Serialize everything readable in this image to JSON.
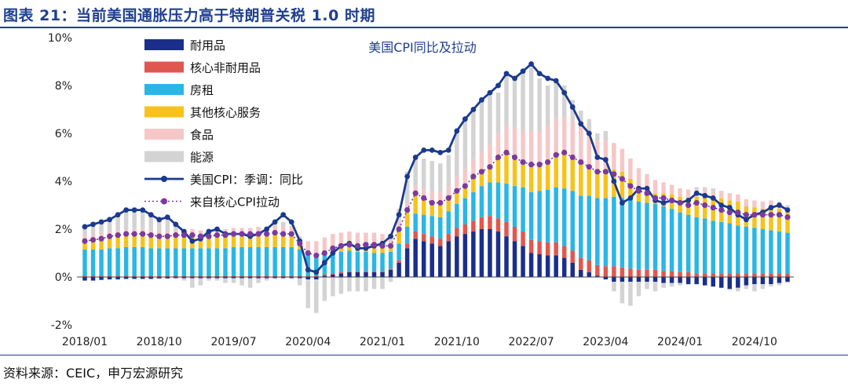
{
  "header": {
    "title": "图表 21：当前美国通胀压力高于特朗普关税 1.0 时期"
  },
  "footer": {
    "source": "资料来源：CEIC，申万宏源研究"
  },
  "colors": {
    "title": "#1f3f8f",
    "durables": "#1a2e8c",
    "core_nondurables": "#e0574f",
    "shelter": "#29b6e6",
    "other_services": "#f7c31a",
    "food": "#f6c7c7",
    "energy": "#d3d3d3",
    "cpi_line": "#1a3a8f",
    "core_contrib": "#7a3aa0"
  },
  "chart_data": {
    "type": "bar",
    "title": "美国CPI同比及拉动",
    "ylim": [
      -2,
      10
    ],
    "y_ticks": [
      "-2%",
      "0%",
      "2%",
      "4%",
      "6%",
      "8%",
      "10%"
    ],
    "x_tick_labels": [
      "2018/01",
      "2018/10",
      "2019/07",
      "2020/04",
      "2021/01",
      "2021/10",
      "2022/07",
      "2023/04",
      "2024/01",
      "2024/10"
    ],
    "x_tick_index": [
      0,
      9,
      18,
      27,
      36,
      45,
      54,
      63,
      72,
      81
    ],
    "legend": {
      "position": "top-left",
      "items": [
        {
          "label": "耐用品",
          "kind": "bar",
          "color_key": "durables"
        },
        {
          "label": "核心非耐用品",
          "kind": "bar",
          "color_key": "core_nondurables"
        },
        {
          "label": "房租",
          "kind": "bar",
          "color_key": "shelter"
        },
        {
          "label": "其他核心服务",
          "kind": "bar",
          "color_key": "other_services"
        },
        {
          "label": "食品",
          "kind": "bar",
          "color_key": "food"
        },
        {
          "label": "能源",
          "kind": "bar",
          "color_key": "energy"
        },
        {
          "label": "美国CPI：季调：同比",
          "kind": "line",
          "color_key": "cpi_line"
        },
        {
          "label": "来自核心CPI拉动",
          "kind": "dots",
          "color_key": "core_contrib"
        }
      ]
    },
    "months": 86,
    "series": {
      "cpi_yoy": [
        2.1,
        2.2,
        2.3,
        2.4,
        2.6,
        2.8,
        2.8,
        2.8,
        2.6,
        2.4,
        2.5,
        2.2,
        1.9,
        1.5,
        1.6,
        1.9,
        2.0,
        1.8,
        1.8,
        1.8,
        1.7,
        1.8,
        2.0,
        2.3,
        2.6,
        2.3,
        1.5,
        0.3,
        0.2,
        0.6,
        1.0,
        1.3,
        1.4,
        1.2,
        1.2,
        1.3,
        1.4,
        1.7,
        2.6,
        4.2,
        5.0,
        5.3,
        5.3,
        5.2,
        5.3,
        6.1,
        6.6,
        7.0,
        7.4,
        7.7,
        8.0,
        8.5,
        8.3,
        8.6,
        8.9,
        8.5,
        8.3,
        8.2,
        7.7,
        7.1,
        6.4,
        6.0,
        5.0,
        4.9,
        4.0,
        3.1,
        3.3,
        3.7,
        3.7,
        3.2,
        3.1,
        3.2,
        3.1,
        3.2,
        3.5,
        3.4,
        3.3,
        3.0,
        2.9,
        2.6,
        2.4,
        2.6,
        2.7,
        2.9,
        3.0,
        2.8
      ],
      "core_contribution": [
        1.5,
        1.55,
        1.6,
        1.7,
        1.75,
        1.8,
        1.8,
        1.8,
        1.75,
        1.7,
        1.7,
        1.75,
        1.75,
        1.75,
        1.7,
        1.7,
        1.75,
        1.75,
        1.8,
        1.8,
        1.8,
        1.8,
        1.8,
        1.85,
        1.8,
        1.8,
        1.4,
        1.0,
        0.9,
        1.0,
        1.2,
        1.3,
        1.35,
        1.3,
        1.35,
        1.35,
        1.3,
        1.3,
        2.0,
        2.8,
        3.5,
        3.3,
        3.1,
        3.1,
        3.3,
        3.6,
        3.8,
        4.2,
        4.4,
        4.6,
        5.0,
        5.2,
        5.0,
        4.8,
        4.7,
        4.7,
        4.8,
        5.1,
        5.2,
        5.0,
        4.8,
        4.6,
        4.4,
        4.4,
        4.3,
        4.1,
        3.8,
        3.6,
        3.5,
        3.3,
        3.3,
        3.2,
        3.1,
        3.0,
        3.1,
        3.0,
        2.9,
        2.8,
        2.7,
        2.7,
        2.6,
        2.6,
        2.6,
        2.6,
        2.6,
        2.5
      ],
      "durables": [
        -0.15,
        -0.15,
        -0.12,
        -0.1,
        -0.1,
        -0.08,
        -0.08,
        -0.08,
        -0.08,
        -0.06,
        -0.06,
        -0.05,
        -0.05,
        -0.05,
        -0.05,
        -0.05,
        -0.05,
        -0.05,
        -0.05,
        -0.05,
        -0.05,
        -0.05,
        -0.05,
        -0.05,
        -0.05,
        -0.05,
        -0.05,
        -0.1,
        -0.1,
        0.05,
        0.1,
        0.15,
        0.2,
        0.2,
        0.2,
        0.2,
        0.2,
        0.3,
        0.6,
        1.2,
        1.6,
        1.5,
        1.4,
        1.3,
        1.5,
        1.7,
        1.8,
        1.9,
        2.0,
        2.0,
        1.9,
        1.7,
        1.5,
        1.3,
        1.0,
        0.95,
        0.9,
        0.9,
        0.8,
        0.6,
        0.3,
        0.2,
        0.05,
        -0.1,
        -0.2,
        -0.2,
        -0.2,
        -0.2,
        -0.2,
        -0.2,
        -0.25,
        -0.25,
        -0.25,
        -0.3,
        -0.3,
        -0.35,
        -0.4,
        -0.45,
        -0.5,
        -0.45,
        -0.35,
        -0.3,
        -0.3,
        -0.3,
        -0.25,
        -0.2
      ],
      "core_nondurables": [
        0.05,
        0.05,
        0.05,
        0.05,
        0.05,
        0.05,
        0.05,
        0.05,
        0.05,
        0.05,
        0.05,
        0.05,
        0.05,
        0.05,
        0.05,
        0.05,
        0.05,
        0.05,
        0.05,
        0.05,
        0.05,
        0.05,
        0.05,
        0.05,
        0.05,
        0.05,
        0.05,
        0.05,
        0.05,
        0.05,
        0.05,
        0.05,
        0.05,
        0.05,
        0.05,
        0.05,
        0.05,
        0.05,
        0.1,
        0.2,
        0.3,
        0.3,
        0.3,
        0.3,
        0.3,
        0.35,
        0.4,
        0.45,
        0.5,
        0.55,
        0.55,
        0.6,
        0.6,
        0.6,
        0.55,
        0.55,
        0.55,
        0.55,
        0.5,
        0.5,
        0.5,
        0.5,
        0.45,
        0.45,
        0.45,
        0.4,
        0.35,
        0.3,
        0.3,
        0.3,
        0.25,
        0.25,
        0.2,
        0.2,
        0.15,
        0.15,
        0.15,
        0.15,
        0.15,
        0.15,
        0.15,
        0.15,
        0.15,
        0.15,
        0.15,
        0.15
      ],
      "shelter": [
        1.1,
        1.1,
        1.1,
        1.15,
        1.15,
        1.2,
        1.2,
        1.2,
        1.15,
        1.15,
        1.15,
        1.15,
        1.15,
        1.15,
        1.15,
        1.15,
        1.15,
        1.15,
        1.2,
        1.2,
        1.2,
        1.2,
        1.2,
        1.2,
        1.2,
        1.2,
        1.1,
        0.9,
        0.85,
        0.85,
        0.85,
        0.85,
        0.85,
        0.8,
        0.8,
        0.75,
        0.75,
        0.7,
        0.7,
        0.7,
        0.75,
        0.8,
        0.85,
        0.9,
        0.95,
        1.0,
        1.1,
        1.2,
        1.3,
        1.4,
        1.5,
        1.6,
        1.7,
        1.85,
        2.0,
        2.1,
        2.2,
        2.3,
        2.4,
        2.5,
        2.6,
        2.7,
        2.8,
        2.85,
        2.9,
        2.9,
        2.9,
        2.85,
        2.8,
        2.75,
        2.7,
        2.6,
        2.5,
        2.4,
        2.35,
        2.3,
        2.2,
        2.15,
        2.1,
        2.0,
        1.95,
        1.9,
        1.85,
        1.8,
        1.75,
        1.7
      ],
      "other_services": [
        0.4,
        0.45,
        0.45,
        0.5,
        0.55,
        0.55,
        0.55,
        0.55,
        0.55,
        0.5,
        0.5,
        0.55,
        0.55,
        0.55,
        0.5,
        0.5,
        0.55,
        0.55,
        0.55,
        0.55,
        0.55,
        0.55,
        0.55,
        0.6,
        0.55,
        0.55,
        0.25,
        0.1,
        0.05,
        0.1,
        0.2,
        0.25,
        0.25,
        0.25,
        0.3,
        0.35,
        0.3,
        0.25,
        0.6,
        0.7,
        0.85,
        0.7,
        0.55,
        0.6,
        0.55,
        0.55,
        0.5,
        0.65,
        0.6,
        0.65,
        1.05,
        1.3,
        1.2,
        1.05,
        1.15,
        1.1,
        1.15,
        1.35,
        1.5,
        1.4,
        1.4,
        1.2,
        1.1,
        1.2,
        1.15,
        1.1,
        0.85,
        0.65,
        0.6,
        0.45,
        0.55,
        0.6,
        0.65,
        0.7,
        0.85,
        0.9,
        0.95,
        1.0,
        0.95,
        1.0,
        0.85,
        0.85,
        0.85,
        0.95,
        0.95,
        0.85
      ],
      "food": [
        0.2,
        0.2,
        0.2,
        0.2,
        0.2,
        0.2,
        0.2,
        0.2,
        0.2,
        0.2,
        0.2,
        0.2,
        0.25,
        0.25,
        0.25,
        0.25,
        0.25,
        0.25,
        0.25,
        0.25,
        0.25,
        0.3,
        0.3,
        0.3,
        0.3,
        0.3,
        0.3,
        0.45,
        0.55,
        0.6,
        0.6,
        0.55,
        0.55,
        0.55,
        0.5,
        0.5,
        0.5,
        0.5,
        0.35,
        0.3,
        0.3,
        0.35,
        0.45,
        0.45,
        0.5,
        0.6,
        0.7,
        0.75,
        0.8,
        0.9,
        1.0,
        1.1,
        1.25,
        1.3,
        1.35,
        1.4,
        1.5,
        1.5,
        1.5,
        1.5,
        1.45,
        1.4,
        1.3,
        1.2,
        1.1,
        0.95,
        0.85,
        0.75,
        0.6,
        0.55,
        0.45,
        0.4,
        0.35,
        0.35,
        0.3,
        0.3,
        0.3,
        0.3,
        0.3,
        0.3,
        0.3,
        0.3,
        0.3,
        0.3,
        0.3,
        0.3
      ],
      "energy": [
        0.4,
        0.5,
        0.5,
        0.5,
        0.7,
        0.9,
        0.9,
        0.8,
        0.6,
        0.5,
        0.6,
        0.2,
        -0.1,
        -0.4,
        -0.3,
        -0.1,
        -0.1,
        -0.2,
        -0.2,
        -0.3,
        -0.4,
        -0.2,
        -0.1,
        0.1,
        0.2,
        0.05,
        -0.3,
        -1.2,
        -1.4,
        -1.0,
        -0.8,
        -0.7,
        -0.6,
        -0.6,
        -0.6,
        -0.5,
        -0.5,
        -0.2,
        0.5,
        1.3,
        1.3,
        1.3,
        1.3,
        1.2,
        1.3,
        1.8,
        2.0,
        2.1,
        2.2,
        2.1,
        1.7,
        2.3,
        2.0,
        2.4,
        2.7,
        2.2,
        1.7,
        1.5,
        1.3,
        0.9,
        0.7,
        0.6,
        0.3,
        0.4,
        -0.4,
        -0.9,
        -1.0,
        -0.6,
        -0.3,
        -0.4,
        -0.2,
        -0.15,
        -0.1,
        0.0,
        0.1,
        0.1,
        0.1,
        0.0,
        -0.05,
        -0.15,
        -0.15,
        -0.3,
        -0.2,
        -0.1,
        -0.1,
        -0.05
      ]
    }
  }
}
